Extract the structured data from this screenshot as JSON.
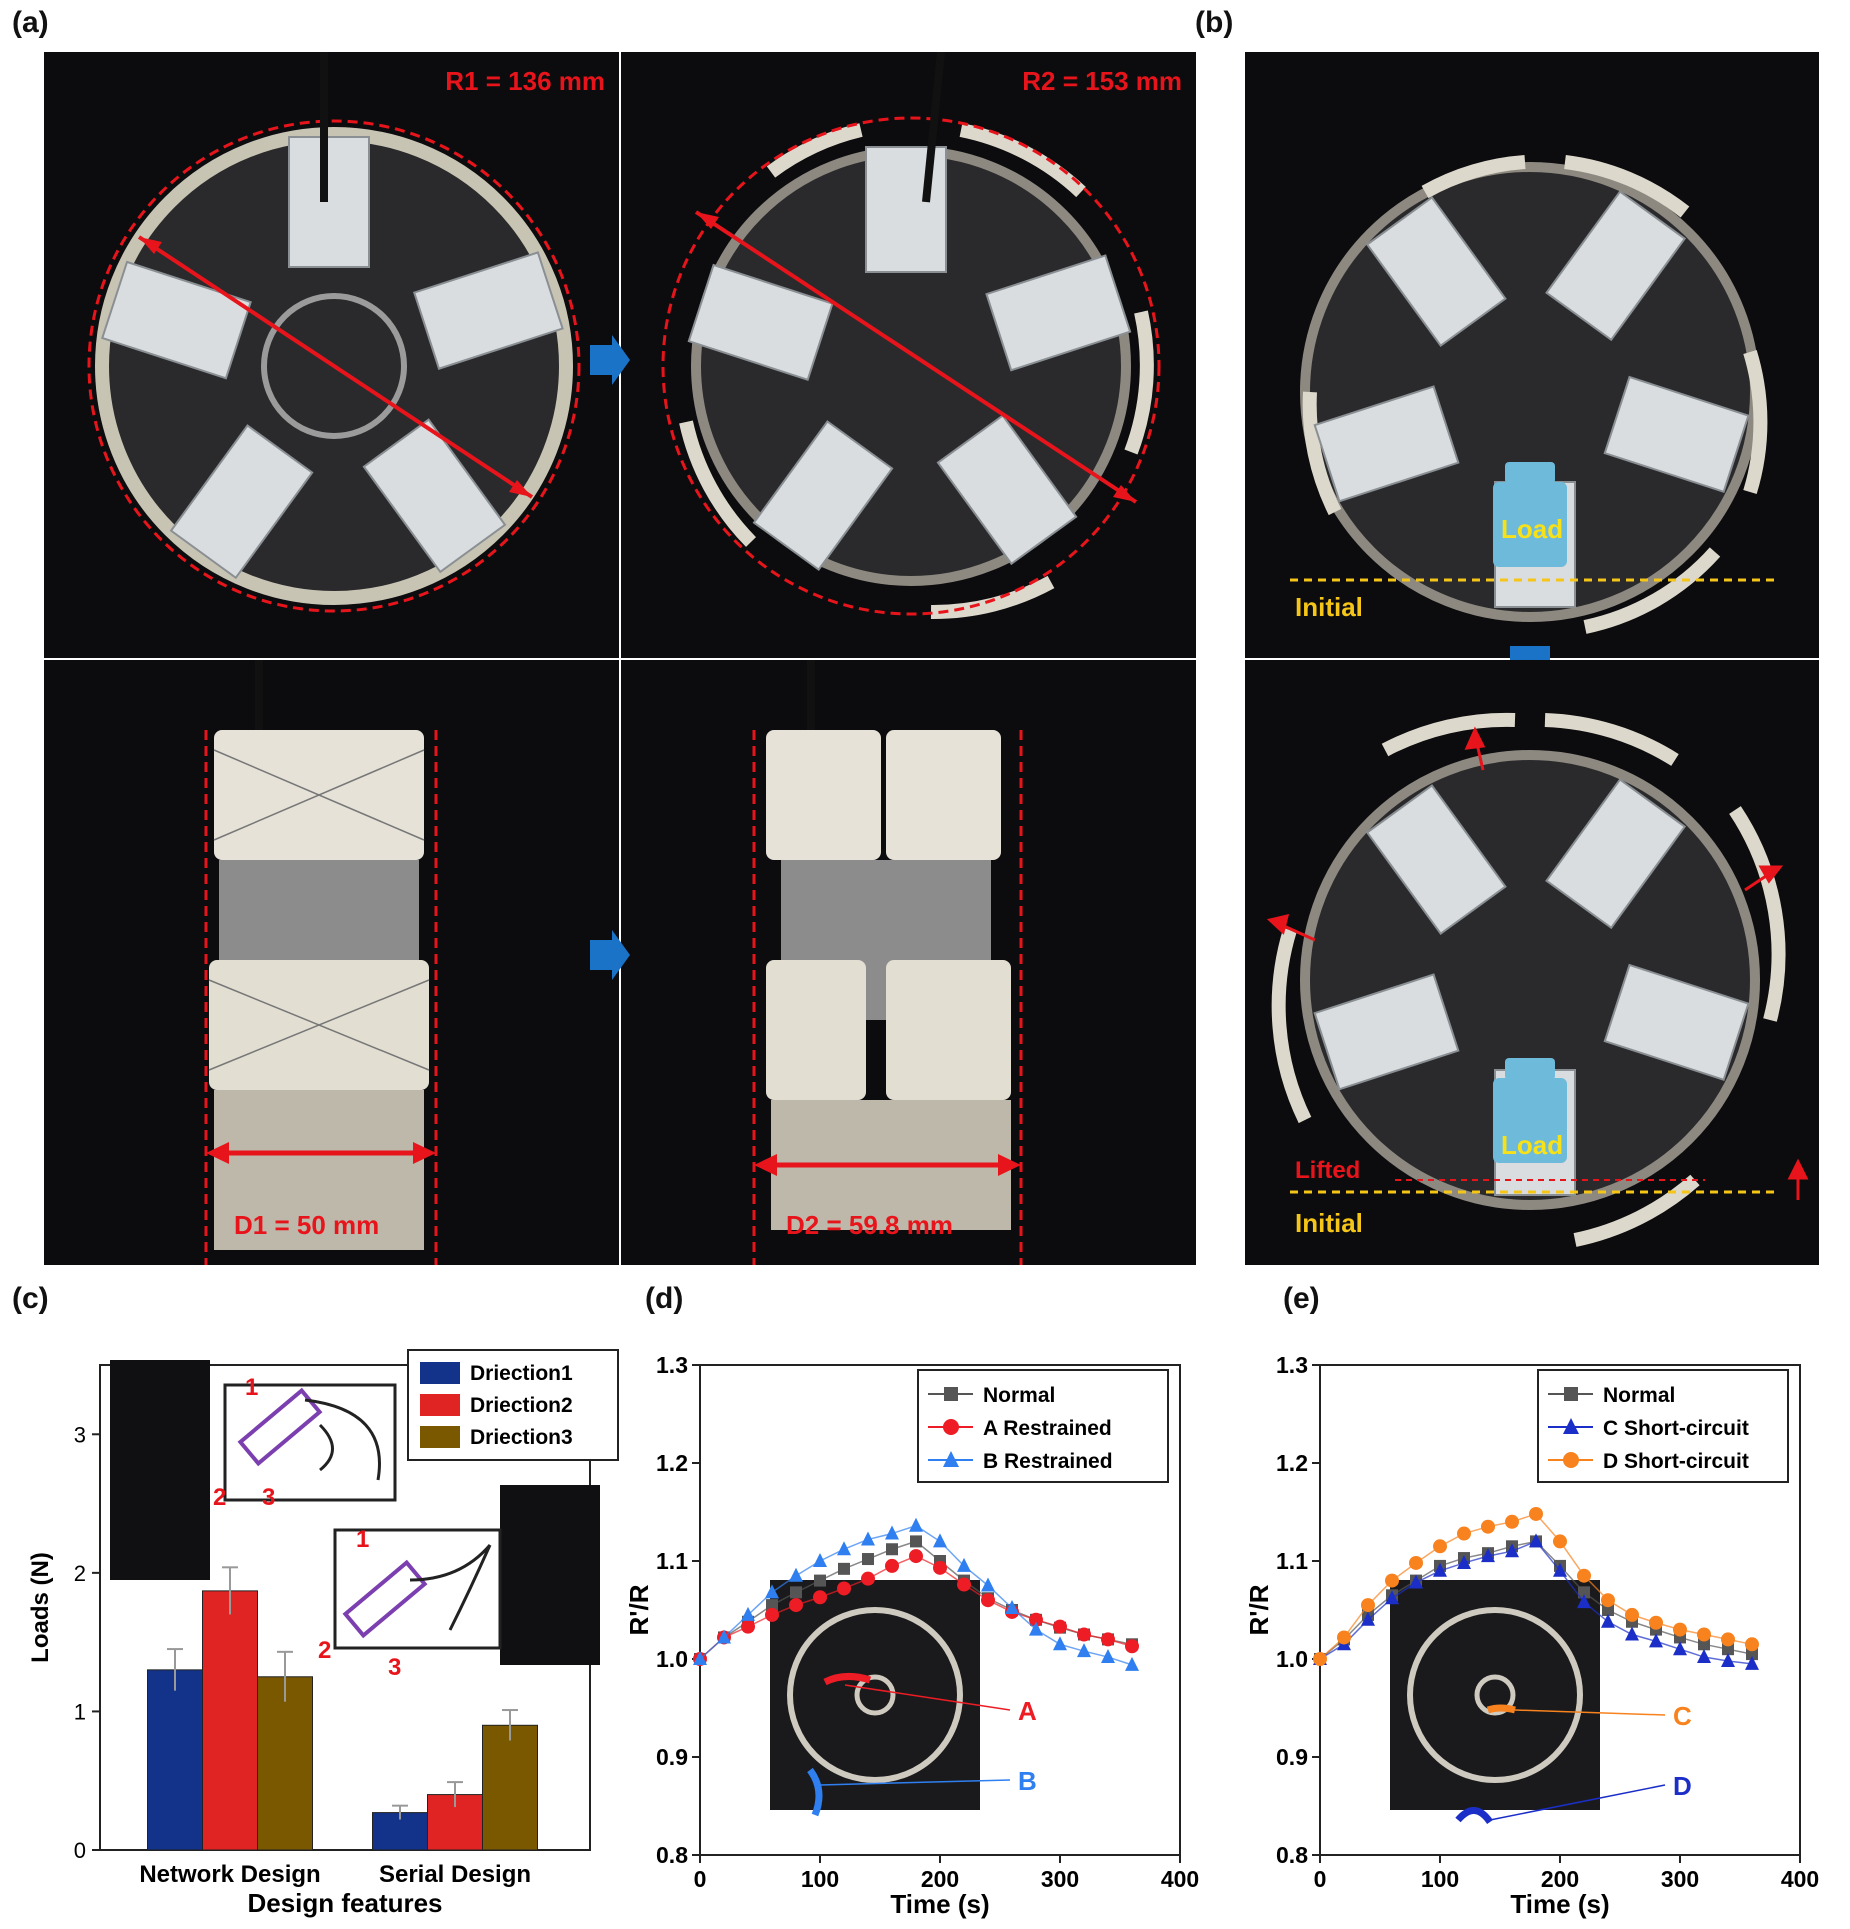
{
  "panels": {
    "a": "(a)",
    "b": "(b)",
    "c": "(c)",
    "d": "(d)",
    "e": "(e)"
  },
  "panel_a": {
    "r1": "R1 = 136 mm",
    "r2": "R2 = 153 mm",
    "d1": "D1 = 50 mm",
    "d2": "D2 = 59.8 mm"
  },
  "panel_b": {
    "load": "Load",
    "initial": "Initial",
    "lifted": "Lifted"
  },
  "panel_d_insets": {
    "a": "A",
    "b": "B"
  },
  "panel_e_insets": {
    "c": "C",
    "d": "D"
  },
  "colors": {
    "red_annotation": "#e8141b",
    "blue_arrow": "#1a73c6",
    "yellow_line": "#f5c518",
    "dir1": "#13338a",
    "dir2": "#e02424",
    "dir3": "#7a5800",
    "normal": "#555555",
    "a_restrained": "#ee1c24",
    "b_restrained": "#2f7ff0",
    "c_short": "#1b2fc8",
    "d_short": "#f7821e"
  },
  "chart_data": [
    {
      "id": "c",
      "type": "bar",
      "xlabel": "Design features",
      "ylabel": "Loads (N)",
      "ylim": [
        0,
        3.5
      ],
      "yticks": [
        "0",
        "1",
        "2",
        "3"
      ],
      "categories": [
        "Network Design",
        "Serial Design"
      ],
      "series": [
        {
          "name": "Driection1",
          "values": [
            1.3,
            0.27
          ],
          "errors": [
            0.15,
            0.05
          ]
        },
        {
          "name": "Driection2",
          "values": [
            1.87,
            0.4
          ],
          "errors": [
            0.17,
            0.09
          ]
        },
        {
          "name": "Driection3",
          "values": [
            1.25,
            0.9
          ],
          "errors": [
            0.18,
            0.11
          ]
        }
      ],
      "legend": "top-right",
      "inset_numbers": [
        "1",
        "2",
        "3"
      ]
    },
    {
      "id": "d",
      "type": "line",
      "xlabel": "Time (s)",
      "ylabel": "R'/R",
      "xlim": [
        0,
        400
      ],
      "ylim": [
        0.8,
        1.3
      ],
      "xticks": [
        "0",
        "100",
        "200",
        "300",
        "400"
      ],
      "yticks": [
        "0.8",
        "0.9",
        "1.0",
        "1.1",
        "1.2",
        "1.3"
      ],
      "x": [
        0,
        20,
        40,
        60,
        80,
        100,
        120,
        140,
        160,
        180,
        200,
        220,
        240,
        260,
        280,
        300,
        320,
        340,
        360
      ],
      "series": [
        {
          "name": "Normal",
          "marker": "square",
          "values": [
            1.0,
            1.022,
            1.038,
            1.055,
            1.068,
            1.08,
            1.092,
            1.102,
            1.112,
            1.12,
            1.1,
            1.08,
            1.062,
            1.05,
            1.04,
            1.032,
            1.025,
            1.02,
            1.015
          ]
        },
        {
          "name": "A Restrained",
          "marker": "circle",
          "values": [
            1.0,
            1.022,
            1.033,
            1.045,
            1.055,
            1.063,
            1.072,
            1.082,
            1.095,
            1.105,
            1.093,
            1.076,
            1.06,
            1.048,
            1.04,
            1.033,
            1.025,
            1.02,
            1.013
          ]
        },
        {
          "name": "B Restrained",
          "marker": "triangle",
          "values": [
            1.0,
            1.022,
            1.045,
            1.068,
            1.085,
            1.1,
            1.112,
            1.122,
            1.128,
            1.136,
            1.12,
            1.095,
            1.075,
            1.052,
            1.03,
            1.015,
            1.008,
            1.002,
            0.994
          ]
        }
      ],
      "legend": "top-right"
    },
    {
      "id": "e",
      "type": "line",
      "xlabel": "Time (s)",
      "ylabel": "R'/R",
      "xlim": [
        0,
        400
      ],
      "ylim": [
        0.8,
        1.3
      ],
      "xticks": [
        "0",
        "100",
        "200",
        "300",
        "400"
      ],
      "yticks": [
        "0.8",
        "0.9",
        "1.0",
        "1.1",
        "1.2",
        "1.3"
      ],
      "x": [
        0,
        20,
        40,
        60,
        80,
        100,
        120,
        140,
        160,
        180,
        200,
        220,
        240,
        260,
        280,
        300,
        320,
        340,
        360
      ],
      "series": [
        {
          "name": "Normal",
          "marker": "square",
          "values": [
            1.0,
            1.02,
            1.045,
            1.065,
            1.08,
            1.095,
            1.103,
            1.108,
            1.115,
            1.12,
            1.095,
            1.068,
            1.05,
            1.038,
            1.03,
            1.022,
            1.015,
            1.01,
            1.005
          ]
        },
        {
          "name": "C Short-circuit",
          "marker": "triangle",
          "values": [
            1.0,
            1.015,
            1.04,
            1.062,
            1.078,
            1.09,
            1.098,
            1.105,
            1.11,
            1.12,
            1.09,
            1.058,
            1.038,
            1.025,
            1.018,
            1.01,
            1.002,
            0.998,
            0.995
          ]
        },
        {
          "name": "D Short-circuit",
          "marker": "circle",
          "values": [
            1.0,
            1.022,
            1.055,
            1.08,
            1.098,
            1.115,
            1.128,
            1.135,
            1.14,
            1.148,
            1.12,
            1.085,
            1.06,
            1.045,
            1.037,
            1.03,
            1.025,
            1.02,
            1.015
          ]
        }
      ],
      "legend": "top-right"
    }
  ]
}
